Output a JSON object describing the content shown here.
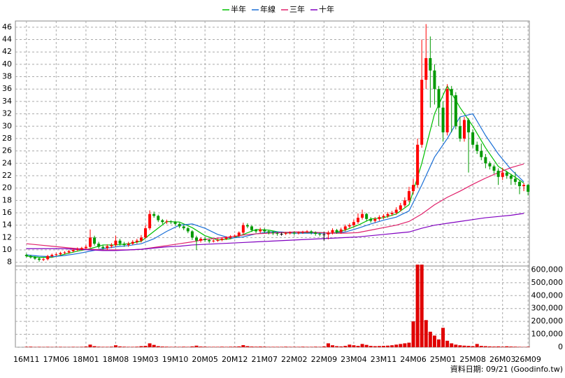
{
  "chart_data": [
    {
      "type": "candlestick",
      "xlim": [
        -2.6,
        118.3
      ],
      "xticks": [
        {
          "value": 0,
          "label": "16M11"
        },
        {
          "value": 7,
          "label": "17M06"
        },
        {
          "value": 14,
          "label": "18M01"
        },
        {
          "value": 21,
          "label": "18M08"
        },
        {
          "value": 28,
          "label": "19M03"
        },
        {
          "value": 35,
          "label": "19M10"
        },
        {
          "value": 42,
          "label": "20M05"
        },
        {
          "value": 49,
          "label": "20M12"
        },
        {
          "value": 56,
          "label": "21M07"
        },
        {
          "value": 63,
          "label": "22M02"
        },
        {
          "value": 70,
          "label": "22M09"
        },
        {
          "value": 77,
          "label": "23M04"
        },
        {
          "value": 84,
          "label": "23M11"
        },
        {
          "value": 91,
          "label": "24M06"
        },
        {
          "value": 98,
          "label": "25M01"
        },
        {
          "value": 105,
          "label": "25M08"
        },
        {
          "value": 112,
          "label": "26M03"
        },
        {
          "value": 118,
          "label": "26M09"
        }
      ],
      "ylim": [
        7.4,
        47
      ],
      "yticks": [
        8,
        10,
        12,
        14,
        16,
        18,
        20,
        22,
        24,
        26,
        28,
        30,
        32,
        34,
        36,
        38,
        40,
        42,
        44,
        46
      ],
      "grid": true,
      "up_color": "#ff0000",
      "down_color": "#009900",
      "flat_color": "#000000",
      "open": [
        9.2,
        9.0,
        8.8,
        8.6,
        8.4,
        8.5,
        9.0,
        9.2,
        9.3,
        9.5,
        9.6,
        9.8,
        10.0,
        10.1,
        10.3,
        10.5,
        12.0,
        11.0,
        10.5,
        10.3,
        10.6,
        10.8,
        11.5,
        11.0,
        10.8,
        11.0,
        11.3,
        11.5,
        12.0,
        13.5,
        15.8,
        15.5,
        14.8,
        14.5,
        14.6,
        14.5,
        14.2,
        13.8,
        13.5,
        13.0,
        12.0,
        11.5,
        11.8,
        11.6,
        11.4,
        11.5,
        11.6,
        11.8,
        12.0,
        12.2,
        12.3,
        12.8,
        14.0,
        13.8,
        13.2,
        13.0,
        13.3,
        13.0,
        12.8,
        12.7,
        12.6,
        12.6,
        12.7,
        12.8,
        12.7,
        12.8,
        12.9,
        13.0,
        12.8,
        12.6,
        12.5,
        12.5,
        12.8,
        13.2,
        12.9,
        13.3,
        13.8,
        14.0,
        14.5,
        15.2,
        15.8,
        15.0,
        14.7,
        15.0,
        15.3,
        15.5,
        15.8,
        16.0,
        16.5,
        17.2,
        18.0,
        19.5,
        20.5,
        27.0,
        37.5,
        41.0,
        39.0,
        36.0,
        33.0,
        29.0,
        36.0,
        35.0,
        30.0,
        28.0,
        31.0,
        29.0,
        27.0,
        26.0,
        25.0,
        24.0,
        23.5,
        22.8,
        21.8,
        22.5,
        22.0,
        21.5,
        21.0,
        20.3,
        20.5
      ],
      "high": [
        9.4,
        9.2,
        9.0,
        8.8,
        8.7,
        9.2,
        9.4,
        9.5,
        9.7,
        9.8,
        10.0,
        10.2,
        10.4,
        10.5,
        10.8,
        13.3,
        12.3,
        11.3,
        10.8,
        10.9,
        11.1,
        12.3,
        11.8,
        11.3,
        11.3,
        11.6,
        11.8,
        12.4,
        14.0,
        16.4,
        16.2,
        15.7,
        15.0,
        14.9,
        14.8,
        14.7,
        14.4,
        14.0,
        13.7,
        13.2,
        12.3,
        12.0,
        12.0,
        11.8,
        11.7,
        11.8,
        12.0,
        12.2,
        12.4,
        12.5,
        13.0,
        14.4,
        14.3,
        14.0,
        13.4,
        13.6,
        13.5,
        13.2,
        13.0,
        12.9,
        12.8,
        12.9,
        13.0,
        13.0,
        13.0,
        13.1,
        13.2,
        13.2,
        13.0,
        12.8,
        12.9,
        13.1,
        13.5,
        13.4,
        13.6,
        14.1,
        14.3,
        14.9,
        15.9,
        16.5,
        16.0,
        15.3,
        15.3,
        15.6,
        15.8,
        16.1,
        16.3,
        16.9,
        17.6,
        18.5,
        20.2,
        21.5,
        28.0,
        44.0,
        46.5,
        44.5,
        40.0,
        36.5,
        34.0,
        36.8,
        36.5,
        35.5,
        31.5,
        31.5,
        31.3,
        29.5,
        27.5,
        27.2,
        25.5,
        24.3,
        23.8,
        23.2,
        23.3,
        22.8,
        22.3,
        22.6,
        21.3,
        20.8,
        20.7
      ],
      "low": [
        8.8,
        8.6,
        8.4,
        8.1,
        8.2,
        8.3,
        8.8,
        9.0,
        9.1,
        9.3,
        9.4,
        9.6,
        9.8,
        9.9,
        10.1,
        10.3,
        10.7,
        10.2,
        10.0,
        10.0,
        10.3,
        10.5,
        10.7,
        10.5,
        10.5,
        10.8,
        11.0,
        11.2,
        11.8,
        13.2,
        15.2,
        14.5,
        14.2,
        14.2,
        14.2,
        13.9,
        13.5,
        13.2,
        12.7,
        11.6,
        10.0,
        11.2,
        11.3,
        11.1,
        11.2,
        11.3,
        11.4,
        11.6,
        11.8,
        12.0,
        12.1,
        12.5,
        13.5,
        12.9,
        12.7,
        12.7,
        12.7,
        12.5,
        12.4,
        12.3,
        12.3,
        12.4,
        12.5,
        12.4,
        12.5,
        12.6,
        12.7,
        12.5,
        12.3,
        12.2,
        11.5,
        11.7,
        12.5,
        12.6,
        12.6,
        13.0,
        13.5,
        13.7,
        14.2,
        14.9,
        14.6,
        14.4,
        14.4,
        14.7,
        15.0,
        15.2,
        15.5,
        15.7,
        16.2,
        16.9,
        17.7,
        19.0,
        20.0,
        26.5,
        36.0,
        33.0,
        33.5,
        30.0,
        27.5,
        28.5,
        29.0,
        29.5,
        27.5,
        27.5,
        22.5,
        26.5,
        25.5,
        24.5,
        23.2,
        23.0,
        22.3,
        20.5,
        21.3,
        21.5,
        20.5,
        20.5,
        19.0,
        19.5,
        18.8
      ],
      "close": [
        9.0,
        8.8,
        8.6,
        8.4,
        8.5,
        9.0,
        9.2,
        9.3,
        9.5,
        9.6,
        9.8,
        10.0,
        10.1,
        10.3,
        10.5,
        12.0,
        11.0,
        10.5,
        10.3,
        10.6,
        10.8,
        11.5,
        11.0,
        10.8,
        11.0,
        11.3,
        11.5,
        12.0,
        13.5,
        15.8,
        15.5,
        14.8,
        14.5,
        14.6,
        14.5,
        14.2,
        13.8,
        13.5,
        13.0,
        12.0,
        11.5,
        11.8,
        11.6,
        11.4,
        11.5,
        11.6,
        11.8,
        12.0,
        12.2,
        12.3,
        12.8,
        14.0,
        13.8,
        13.2,
        13.0,
        13.3,
        13.0,
        12.8,
        12.7,
        12.6,
        12.6,
        12.7,
        12.8,
        12.7,
        12.8,
        12.9,
        13.0,
        12.8,
        12.6,
        12.5,
        12.5,
        12.8,
        13.2,
        12.9,
        13.3,
        13.8,
        14.0,
        14.5,
        15.2,
        15.8,
        15.0,
        14.7,
        15.0,
        15.3,
        15.5,
        15.8,
        16.0,
        16.5,
        17.2,
        18.0,
        19.5,
        20.5,
        27.0,
        37.5,
        41.0,
        39.0,
        36.0,
        33.0,
        29.0,
        36.0,
        35.0,
        30.0,
        28.0,
        31.0,
        29.0,
        27.0,
        26.0,
        25.0,
        24.0,
        23.5,
        22.8,
        21.8,
        22.5,
        22.0,
        21.5,
        21.0,
        20.3,
        20.5,
        19.4
      ],
      "ma_x": [
        0,
        3,
        6,
        9,
        12,
        15,
        18,
        21,
        24,
        27,
        30,
        33,
        36,
        39,
        42,
        45,
        48,
        51,
        54,
        57,
        60,
        63,
        66,
        69,
        72,
        75,
        78,
        81,
        84,
        87,
        90,
        93,
        96,
        99,
        102,
        105,
        108,
        111,
        114,
        117
      ],
      "series": [
        {
          "name": "半年",
          "color": "#00c000",
          "values": [
            9.0,
            8.8,
            8.8,
            9.3,
            9.8,
            10.2,
            10.8,
            10.8,
            11.0,
            11.4,
            13.0,
            14.6,
            14.5,
            13.6,
            12.3,
            11.6,
            11.8,
            12.5,
            13.3,
            13.2,
            12.8,
            12.7,
            12.8,
            12.8,
            12.7,
            13.2,
            14.0,
            15.0,
            15.2,
            15.8,
            17.3,
            24.0,
            32.0,
            36.5,
            33.0,
            30.0,
            26.5,
            23.5,
            22.2,
            20.8
          ]
        },
        {
          "name": "年線",
          "color": "#1a6fd6",
          "values": [
            9.2,
            9.0,
            8.9,
            9.1,
            9.4,
            9.8,
            10.2,
            10.5,
            10.7,
            11.0,
            11.8,
            13.0,
            14.0,
            14.2,
            13.5,
            12.5,
            11.9,
            12.1,
            12.6,
            12.9,
            12.9,
            12.7,
            12.7,
            12.7,
            12.7,
            12.9,
            13.5,
            14.2,
            14.8,
            15.3,
            16.3,
            20.5,
            25.0,
            28.0,
            31.5,
            32.0,
            28.5,
            25.5,
            23.0,
            21.0
          ]
        },
        {
          "name": "三年",
          "color": "#e0206a",
          "values": [
            11.0,
            10.8,
            10.6,
            10.4,
            10.2,
            10.1,
            10.0,
            10.0,
            10.0,
            10.1,
            10.4,
            10.7,
            11.0,
            11.3,
            11.7,
            11.9,
            12.1,
            12.4,
            12.6,
            12.7,
            12.8,
            12.9,
            12.9,
            12.8,
            12.7,
            12.7,
            12.8,
            13.2,
            13.6,
            14.0,
            14.6,
            15.8,
            17.3,
            18.5,
            19.5,
            20.6,
            21.6,
            22.5,
            23.3,
            23.9
          ]
        },
        {
          "name": "十年",
          "color": "#8000c0",
          "values": [
            10.2,
            10.2,
            10.2,
            10.2,
            10.1,
            10.0,
            9.9,
            9.9,
            10.0,
            10.1,
            10.3,
            10.5,
            10.6,
            10.8,
            10.9,
            11.0,
            11.1,
            11.2,
            11.3,
            11.4,
            11.5,
            11.6,
            11.7,
            11.8,
            11.9,
            12.0,
            12.1,
            12.3,
            12.5,
            12.7,
            12.9,
            13.5,
            14.0,
            14.3,
            14.6,
            14.9,
            15.2,
            15.4,
            15.6,
            15.9
          ]
        }
      ]
    },
    {
      "type": "bar",
      "color": "#e00000",
      "ylim": [
        0,
        640000
      ],
      "yticks": [
        0,
        {
          "value": 100000,
          "label": "100,000"
        },
        {
          "value": 200000,
          "label": "200,000"
        },
        {
          "value": 300000,
          "label": "300,000"
        },
        {
          "value": 400000,
          "label": "400,000"
        },
        {
          "value": 500000,
          "label": "500,000"
        },
        {
          "value": 600000,
          "label": "600,000"
        }
      ],
      "grid": true,
      "values": [
        3000,
        4000,
        2000,
        3000,
        2000,
        3000,
        2000,
        2000,
        3000,
        2000,
        2000,
        3000,
        2000,
        3000,
        5000,
        20000,
        8000,
        4000,
        3000,
        3000,
        4000,
        15000,
        6000,
        4000,
        3000,
        3000,
        4000,
        8000,
        10000,
        30000,
        18000,
        8000,
        5000,
        4000,
        3000,
        3000,
        3000,
        4000,
        3000,
        6000,
        12000,
        5000,
        4000,
        3000,
        3000,
        3000,
        4000,
        3000,
        4000,
        4000,
        6000,
        16000,
        8000,
        5000,
        4000,
        5000,
        4000,
        3000,
        3000,
        3000,
        3000,
        4000,
        3000,
        3000,
        3000,
        4000,
        3000,
        3000,
        4000,
        3000,
        6000,
        30000,
        15000,
        8000,
        6000,
        10000,
        20000,
        15000,
        10000,
        25000,
        18000,
        10000,
        8000,
        9000,
        10000,
        12000,
        15000,
        20000,
        25000,
        30000,
        35000,
        200000,
        640000,
        640000,
        210000,
        120000,
        90000,
        60000,
        150000,
        50000,
        30000,
        20000,
        15000,
        12000,
        10000,
        8000,
        25000,
        10000,
        8000,
        6000,
        5000,
        6000,
        4000,
        7000,
        5000,
        4000,
        3000,
        2000,
        3000
      ]
    }
  ],
  "footer": "資料日期: 09/21 (Goodinfo.tw)"
}
